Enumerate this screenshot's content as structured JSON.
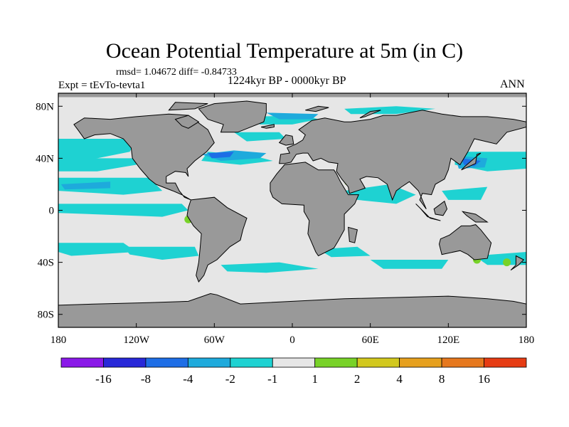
{
  "title": "Ocean Potential Temperature at 5m (in C)",
  "stats": "rmsd= 1.04672 diff= -0.84733",
  "experiment": "Expt = tEvTo-tevta1",
  "period": "1224kyr BP - 0000kyr BP",
  "season": "ANN",
  "lat_ticks": [
    {
      "label": "80N",
      "lat": 80
    },
    {
      "label": "40N",
      "lat": 40
    },
    {
      "label": "0",
      "lat": 0
    },
    {
      "label": "40S",
      "lat": -40
    },
    {
      "label": "80S",
      "lat": -80
    }
  ],
  "lon_ticks": [
    {
      "label": "180",
      "lon": -180
    },
    {
      "label": "120W",
      "lon": -120
    },
    {
      "label": "60W",
      "lon": -60
    },
    {
      "label": "0",
      "lon": 0
    },
    {
      "label": "60E",
      "lon": 60
    },
    {
      "label": "120E",
      "lon": 120
    },
    {
      "label": "180",
      "lon": 180
    }
  ],
  "colorbar": {
    "colors": [
      "#8a19e8",
      "#2828d8",
      "#1e6ee6",
      "#1eaadc",
      "#1ed2d2",
      "#e6e6e6",
      "#78d228",
      "#d2c81e",
      "#e6a01e",
      "#e6781e",
      "#e63c14"
    ],
    "labels": [
      "-16",
      "-8",
      "-4",
      "-2",
      "-1",
      "1",
      "2",
      "4",
      "8",
      "16"
    ]
  },
  "colors": {
    "land": "#999999",
    "ocean": "#e6e6e6",
    "coast": "#000000",
    "cool1": "#1ed2d2",
    "cool2": "#1eaadc",
    "cool3": "#1e6ee6",
    "warm1": "#78d228"
  },
  "chart_data": {
    "type": "heatmap",
    "title": "Ocean Potential Temperature at 5m (in C)",
    "projection": "cylindrical equidistant",
    "lon_range": [
      -180,
      180
    ],
    "lat_range": [
      -90,
      90
    ],
    "levels": [
      -16,
      -8,
      -4,
      -2,
      -1,
      1,
      2,
      4,
      8,
      16
    ],
    "units": "C",
    "rmsd": 1.04672,
    "diff": -0.84733
  }
}
